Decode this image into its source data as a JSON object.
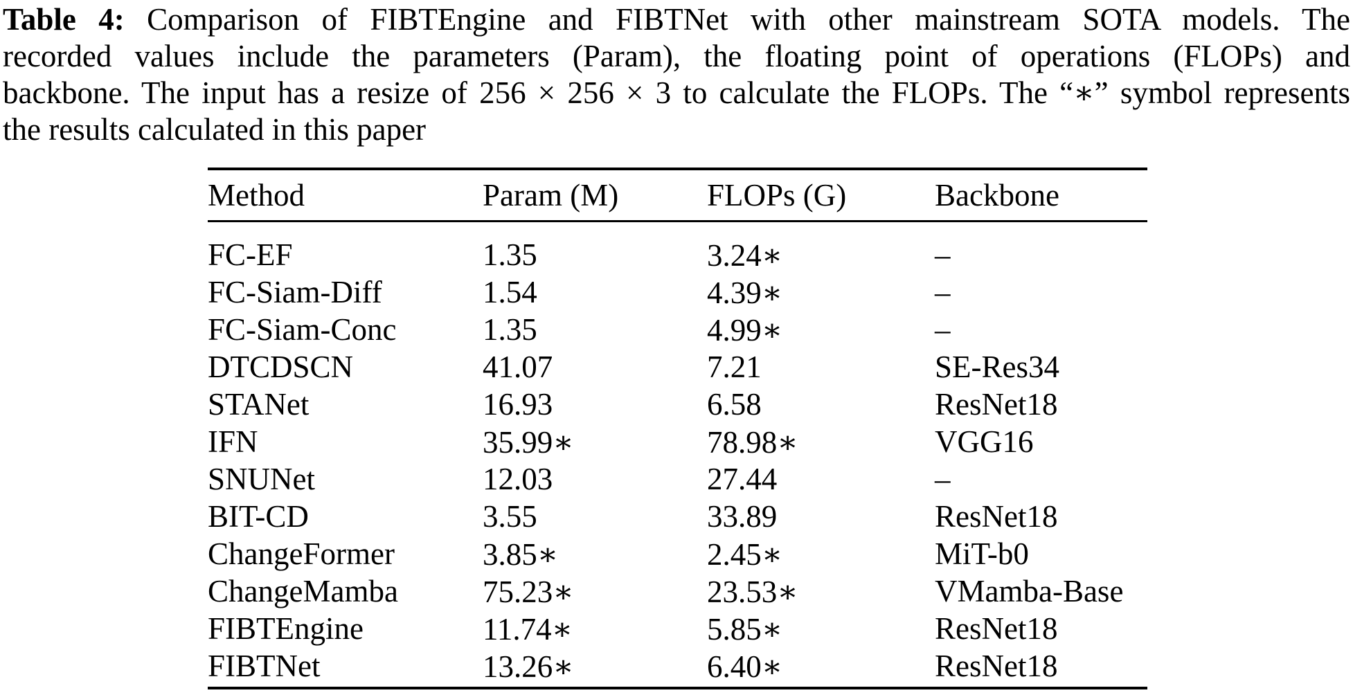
{
  "page": {
    "background": "#ffffff",
    "text_color": "#000000"
  },
  "caption": {
    "label": "Table 4:",
    "lines": [
      " Comparison of FIBTEngine and FIBTNet with other mainstream SOTA models. The",
      "recorded values include the parameters (Param), the floating point of operations (FLOPs) and",
      "backbone. The input has a resize of 256 × 256 × 3 to calculate the FLOPs. The “∗” symbol represents",
      "the results calculated in this paper"
    ]
  },
  "table": {
    "columns": [
      "Method",
      "Param (M)",
      "FLOPs (G)",
      "Backbone"
    ],
    "rows": [
      [
        "FC-EF",
        "1.35",
        "3.24∗",
        "–"
      ],
      [
        "FC-Siam-Diff",
        "1.54",
        "4.39∗",
        "–"
      ],
      [
        "FC-Siam-Conc",
        "1.35",
        "4.99∗",
        "–"
      ],
      [
        "DTCDSCN",
        "41.07",
        "7.21",
        "SE-Res34"
      ],
      [
        "STANet",
        "16.93",
        "6.58",
        "ResNet18"
      ],
      [
        "IFN",
        "35.99∗",
        "78.98∗",
        "VGG16"
      ],
      [
        "SNUNet",
        "12.03",
        "27.44",
        "–"
      ],
      [
        "BIT-CD",
        "3.55",
        "33.89",
        "ResNet18"
      ],
      [
        "ChangeFormer",
        "3.85∗",
        "2.45∗",
        "MiT-b0"
      ],
      [
        "ChangeMamba",
        "75.23∗",
        "23.53∗",
        "VMamba-Base"
      ],
      [
        "FIBTEngine",
        "11.74∗",
        "5.85∗",
        "ResNet18"
      ],
      [
        "FIBTNet",
        "13.26∗",
        "6.40∗",
        "ResNet18"
      ]
    ]
  }
}
